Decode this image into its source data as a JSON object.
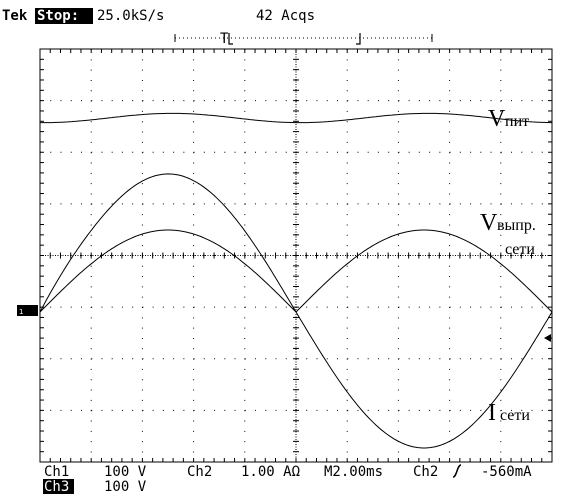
{
  "header": {
    "brand": "Tek",
    "run_state": "Stop:",
    "sample_rate": "25.0kS/s",
    "acquisitions": "42 Acqs",
    "trigger_marker": "T"
  },
  "trace_labels": {
    "v_supply_main": "V",
    "v_supply_sub": "пит",
    "v_rect_main": "V",
    "v_rect_sub1": "выпр.",
    "v_rect_sub2": "сети",
    "i_main": "I",
    "i_sub": "сети"
  },
  "footer": {
    "ch1_label": "Ch1",
    "ch1_scale": "100 V",
    "ch2_label": "Ch2",
    "ch2_scale": "1.00 AΩ",
    "timebase": "M2.00ms",
    "trigger_source": "Ch2",
    "trigger_level": "-560mA",
    "ch3_label": "Ch3",
    "ch3_scale": "100 V"
  },
  "colors": {
    "background": "#ffffff",
    "trace": "#000000",
    "graticule": "#000000"
  },
  "icons": {
    "ground_marker": "channel-ground-marker-icon",
    "trigger_level": "trigger-level-arrow-icon",
    "trigger_slope": "rising-slope-icon"
  }
}
